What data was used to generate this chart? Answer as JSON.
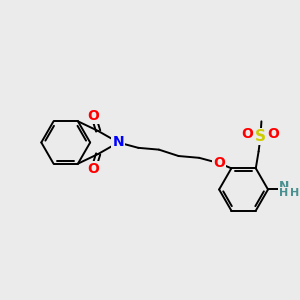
{
  "bg_color": "#ebebeb",
  "bond_color": "#000000",
  "bond_width": 1.4,
  "atom_colors": {
    "N": "#0000ff",
    "O": "#ff0000",
    "S": "#cccc00",
    "NH": "#4a9090"
  },
  "figsize": [
    3.0,
    3.0
  ],
  "dpi": 100
}
